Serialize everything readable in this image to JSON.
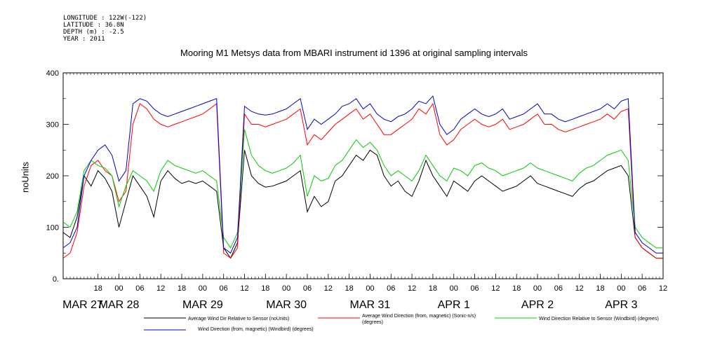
{
  "header": {
    "longitude": "LONGITUDE : 122W(-122)",
    "latitude": "LATITUDE : 36.8N",
    "depth": "DEPTH (m) : -2.5",
    "year": "YEAR : 2011"
  },
  "chart_data": {
    "type": "line",
    "title": "Mooring M1 Metsys data from MBARI instrument id 1396 at original sampling intervals",
    "ylabel": "noUnits",
    "xlabel": "",
    "ylim": [
      0,
      400
    ],
    "y_ticks": [
      "0.",
      "100",
      "200",
      "300",
      "400"
    ],
    "xlim_hours_from_mar27_00": [
      8,
      180
    ],
    "hour_tick_labels": [
      "18",
      "00",
      "06",
      "12",
      "18",
      "00",
      "06",
      "12",
      "18",
      "00",
      "06",
      "12",
      "18",
      "00",
      "06",
      "12",
      "18",
      "00",
      "06",
      "12",
      "18",
      "00",
      "06",
      "12",
      "18",
      "00",
      "06",
      "12"
    ],
    "date_labels": [
      "MAR 27",
      "MAR 28",
      "MAR 29",
      "MAR 30",
      "MAR 31",
      "APR  1",
      "APR  2",
      "APR  3"
    ],
    "grid": false,
    "legend_position": "bottom",
    "series": [
      {
        "name": "Average Wind Dir Relative to Sensor (noUnits)",
        "color": "#000000",
        "x": [
          8,
          10,
          12,
          14,
          16,
          18,
          20,
          22,
          24,
          26,
          28,
          30,
          32,
          34,
          36,
          38,
          40,
          42,
          44,
          46,
          48,
          50,
          52,
          54,
          56,
          58,
          60,
          62,
          64,
          66,
          68,
          70,
          72,
          74,
          76,
          78,
          80,
          82,
          84,
          86,
          88,
          90,
          92,
          94,
          96,
          98,
          100,
          102,
          104,
          106,
          108,
          110,
          112,
          114,
          116,
          118,
          120,
          122,
          124,
          126,
          128,
          130,
          132,
          134,
          136,
          138,
          140,
          142,
          144,
          146,
          148,
          150,
          152,
          154,
          156,
          158,
          160,
          162,
          164,
          166,
          168,
          170,
          172,
          174,
          176,
          178,
          180
        ],
        "values": [
          90,
          80,
          120,
          200,
          180,
          210,
          195,
          170,
          100,
          150,
          200,
          180,
          160,
          120,
          190,
          210,
          195,
          185,
          190,
          185,
          190,
          180,
          170,
          60,
          40,
          70,
          250,
          200,
          185,
          178,
          180,
          185,
          190,
          200,
          210,
          130,
          160,
          140,
          150,
          190,
          200,
          220,
          240,
          230,
          250,
          240,
          200,
          180,
          190,
          170,
          160,
          190,
          230,
          200,
          180,
          160,
          190,
          180,
          170,
          190,
          200,
          190,
          180,
          170,
          175,
          180,
          190,
          200,
          185,
          180,
          175,
          170,
          165,
          160,
          175,
          185,
          190,
          200,
          210,
          215,
          220,
          200,
          80,
          60,
          50,
          40,
          40
        ]
      },
      {
        "name": "Average Wind Direction (from, magnetic) (Sonic-n/s) (degrees)",
        "color": "#ff0000",
        "x": [
          8,
          10,
          12,
          14,
          16,
          18,
          20,
          22,
          24,
          26,
          28,
          30,
          32,
          34,
          36,
          38,
          40,
          42,
          44,
          46,
          48,
          50,
          52,
          54,
          56,
          58,
          60,
          62,
          64,
          66,
          68,
          70,
          72,
          74,
          76,
          78,
          80,
          82,
          84,
          86,
          88,
          90,
          92,
          94,
          96,
          98,
          100,
          102,
          104,
          106,
          108,
          110,
          112,
          114,
          116,
          118,
          120,
          122,
          124,
          126,
          128,
          130,
          132,
          134,
          136,
          138,
          140,
          142,
          144,
          146,
          148,
          150,
          152,
          154,
          156,
          158,
          160,
          162,
          164,
          166,
          168,
          170,
          172,
          174,
          176,
          178,
          180
        ],
        "values": [
          40,
          50,
          90,
          180,
          220,
          230,
          210,
          200,
          150,
          170,
          300,
          340,
          330,
          310,
          300,
          295,
          300,
          305,
          310,
          315,
          320,
          330,
          340,
          50,
          40,
          60,
          320,
          300,
          300,
          295,
          300,
          305,
          310,
          320,
          330,
          260,
          280,
          270,
          285,
          300,
          310,
          320,
          330,
          310,
          320,
          300,
          280,
          280,
          290,
          300,
          310,
          330,
          320,
          340,
          280,
          260,
          270,
          290,
          300,
          310,
          300,
          295,
          300,
          310,
          290,
          295,
          300,
          310,
          320,
          300,
          300,
          290,
          285,
          290,
          295,
          300,
          305,
          310,
          320,
          310,
          325,
          330,
          80,
          60,
          50,
          40,
          40
        ]
      },
      {
        "name": "Wind Direction Relative to Sensor (Windbird) (degrees)",
        "color": "#00cc00",
        "x": [
          8,
          10,
          12,
          14,
          16,
          18,
          20,
          22,
          24,
          26,
          28,
          30,
          32,
          34,
          36,
          38,
          40,
          42,
          44,
          46,
          48,
          50,
          52,
          54,
          56,
          58,
          60,
          62,
          64,
          66,
          68,
          70,
          72,
          74,
          76,
          78,
          80,
          82,
          84,
          86,
          88,
          90,
          92,
          94,
          96,
          98,
          100,
          102,
          104,
          106,
          108,
          110,
          112,
          114,
          116,
          118,
          120,
          122,
          124,
          126,
          128,
          130,
          132,
          134,
          136,
          138,
          140,
          142,
          144,
          146,
          148,
          150,
          152,
          154,
          156,
          158,
          160,
          162,
          164,
          166,
          168,
          170,
          172,
          174,
          176,
          178,
          180
        ],
        "values": [
          110,
          100,
          130,
          210,
          230,
          220,
          215,
          200,
          140,
          180,
          210,
          200,
          190,
          170,
          210,
          230,
          220,
          215,
          210,
          205,
          210,
          200,
          190,
          80,
          60,
          90,
          290,
          240,
          220,
          210,
          205,
          210,
          215,
          225,
          240,
          160,
          200,
          190,
          195,
          220,
          230,
          250,
          270,
          255,
          265,
          250,
          220,
          200,
          210,
          200,
          190,
          210,
          240,
          220,
          200,
          190,
          215,
          210,
          200,
          220,
          225,
          215,
          210,
          200,
          205,
          210,
          215,
          225,
          215,
          210,
          205,
          200,
          195,
          190,
          205,
          215,
          220,
          230,
          240,
          245,
          250,
          230,
          100,
          80,
          70,
          60,
          60
        ]
      },
      {
        "name": "Wind Direction (from, magnetic) (Windbird) (degrees)",
        "color": "#0000cc",
        "x": [
          8,
          10,
          12,
          14,
          16,
          18,
          20,
          22,
          24,
          26,
          28,
          30,
          32,
          34,
          36,
          38,
          40,
          42,
          44,
          46,
          48,
          50,
          52,
          54,
          56,
          58,
          60,
          62,
          64,
          66,
          68,
          70,
          72,
          74,
          76,
          78,
          80,
          82,
          84,
          86,
          88,
          90,
          92,
          94,
          96,
          98,
          100,
          102,
          104,
          106,
          108,
          110,
          112,
          114,
          116,
          118,
          120,
          122,
          124,
          126,
          128,
          130,
          132,
          134,
          136,
          138,
          140,
          142,
          144,
          146,
          148,
          150,
          152,
          154,
          156,
          158,
          160,
          162,
          164,
          166,
          168,
          170,
          172,
          174,
          176,
          178,
          180
        ],
        "values": [
          60,
          70,
          100,
          200,
          230,
          250,
          260,
          240,
          190,
          210,
          340,
          350,
          345,
          330,
          320,
          315,
          320,
          325,
          330,
          335,
          340,
          345,
          350,
          60,
          50,
          80,
          335,
          325,
          320,
          318,
          320,
          325,
          330,
          340,
          350,
          290,
          310,
          300,
          310,
          320,
          335,
          340,
          350,
          330,
          340,
          320,
          310,
          305,
          315,
          320,
          330,
          345,
          340,
          355,
          300,
          280,
          290,
          310,
          320,
          330,
          320,
          315,
          320,
          330,
          310,
          315,
          320,
          330,
          340,
          320,
          320,
          310,
          305,
          310,
          315,
          320,
          325,
          330,
          340,
          330,
          345,
          350,
          90,
          70,
          60,
          50,
          50
        ]
      }
    ]
  }
}
